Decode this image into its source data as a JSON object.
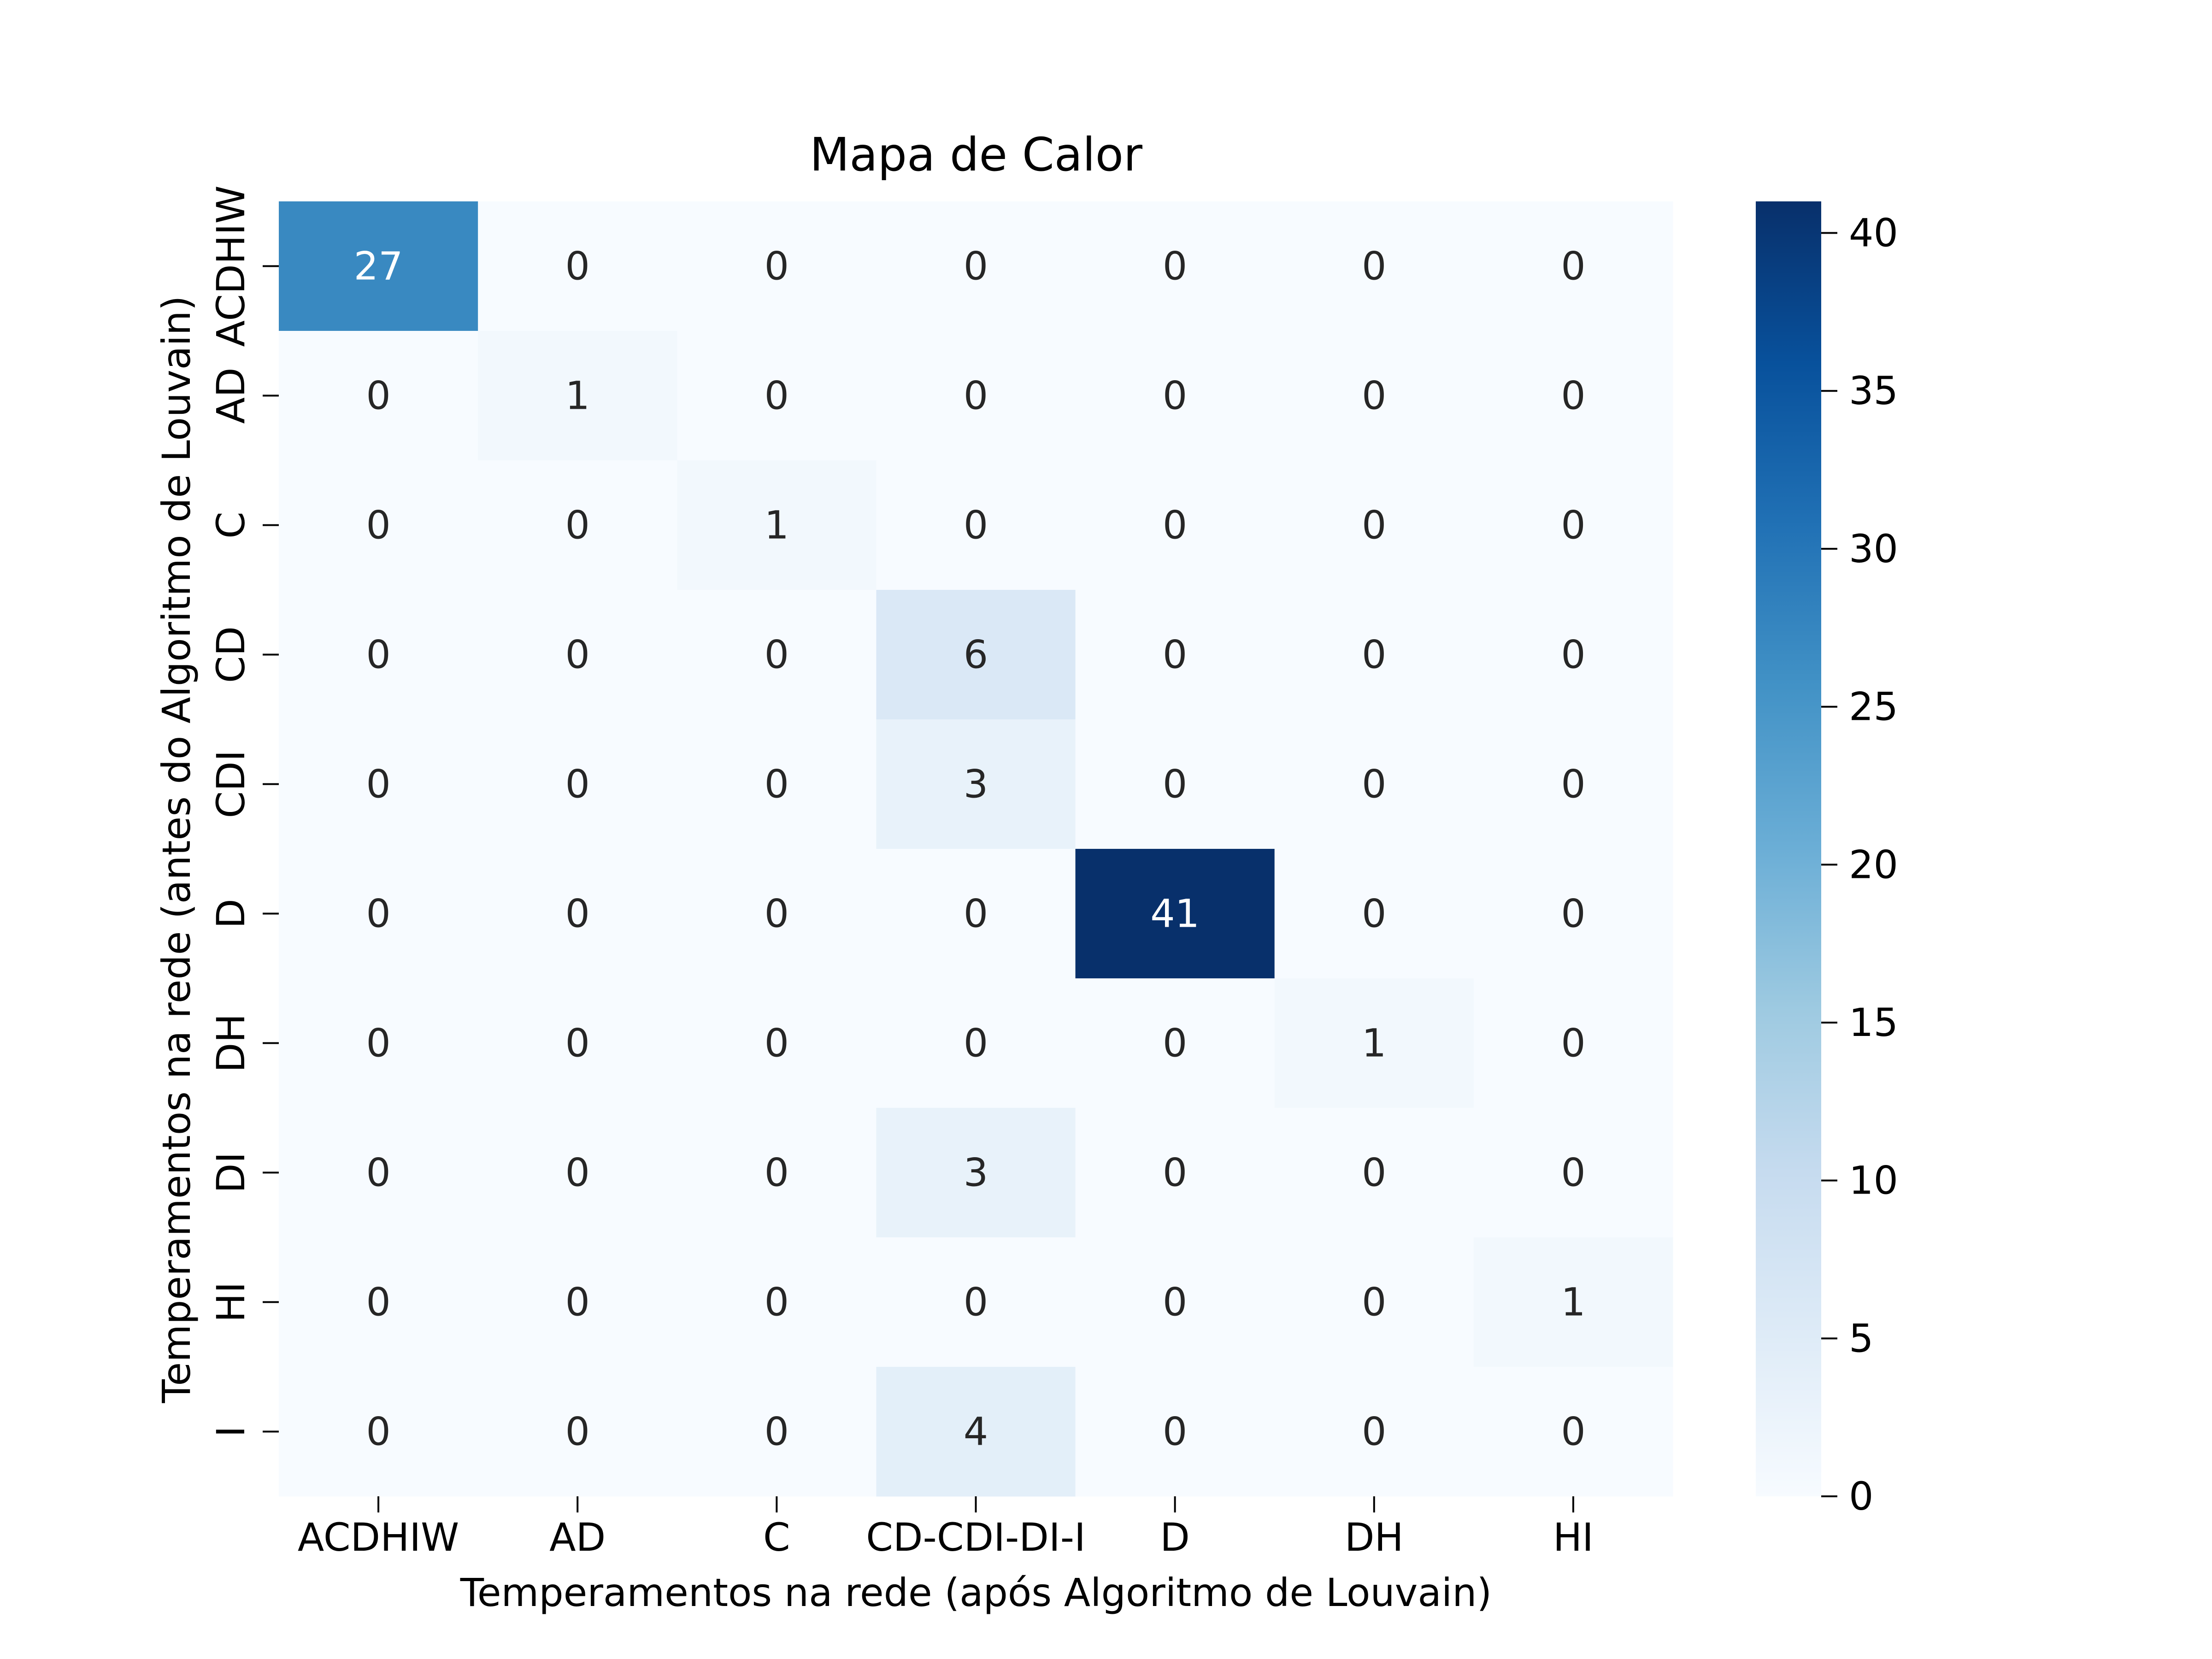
{
  "chart_data": {
    "type": "heatmap",
    "title": "Mapa de Calor",
    "xlabel": "Temperamentos na rede (após Algoritmo de Louvain)",
    "ylabel": "Temperamentos na rede (antes do Algoritmo de Louvain)",
    "x_categories": [
      "ACDHIW",
      "AD",
      "C",
      "CD-CDI-DI-I",
      "D",
      "DH",
      "HI"
    ],
    "y_categories": [
      "ACDHIW",
      "AD",
      "C",
      "CD",
      "CDI",
      "D",
      "DH",
      "DI",
      "HI",
      "I"
    ],
    "values": [
      [
        27,
        0,
        0,
        0,
        0,
        0,
        0
      ],
      [
        0,
        1,
        0,
        0,
        0,
        0,
        0
      ],
      [
        0,
        0,
        1,
        0,
        0,
        0,
        0
      ],
      [
        0,
        0,
        0,
        6,
        0,
        0,
        0
      ],
      [
        0,
        0,
        0,
        3,
        0,
        0,
        0
      ],
      [
        0,
        0,
        0,
        0,
        41,
        0,
        0
      ],
      [
        0,
        0,
        0,
        0,
        0,
        1,
        0
      ],
      [
        0,
        0,
        0,
        3,
        0,
        0,
        0
      ],
      [
        0,
        0,
        0,
        0,
        0,
        0,
        1
      ],
      [
        0,
        0,
        0,
        4,
        0,
        0,
        0
      ]
    ],
    "colormap": "Blues",
    "vmin": 0,
    "vmax": 41,
    "colorbar_ticks": [
      0,
      5,
      10,
      15,
      20,
      25,
      30,
      35,
      40
    ],
    "annotation_dark_color": "#262626",
    "annotation_light_color": "#ffffff"
  }
}
